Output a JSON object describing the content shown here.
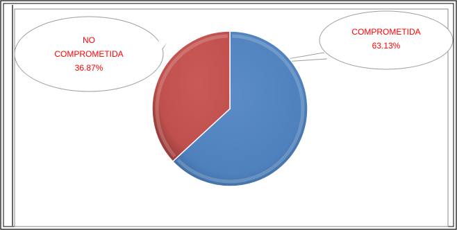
{
  "chart_data": {
    "type": "pie",
    "title": "",
    "slices": [
      {
        "label_lines": [
          "COMPROMETIDA"
        ],
        "value": 63.13,
        "value_label": "63.13%",
        "color": "#4f81bd"
      },
      {
        "label_lines": [
          "NO",
          "COMPROMETIDA"
        ],
        "value": 36.87,
        "value_label": "36.87%",
        "color": "#c0504d"
      }
    ],
    "label_color": "#ff0000",
    "start_angle_deg": 0,
    "direction": "clockwise",
    "legend": "none",
    "style": "3d-bevel"
  }
}
